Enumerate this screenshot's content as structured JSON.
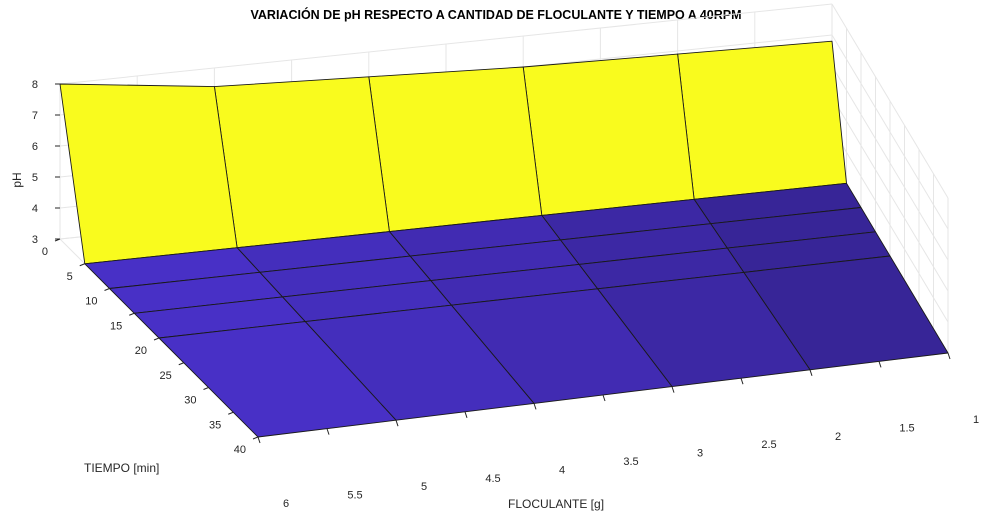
{
  "chart_data": {
    "type": "surface",
    "title": "VARIACIÓN DE pH RESPECTO A CANTIDAD DE FLOCULANTE Y TIEMPO A 40RPM",
    "xlabel": "FLOCULANTE [g]",
    "ylabel": "TIEMPO [min]",
    "zlabel": "pH",
    "x": [
      1,
      2,
      3,
      4,
      5,
      6
    ],
    "y": [
      0,
      5,
      10,
      15,
      20,
      40
    ],
    "z": [
      [
        6.8,
        6.9,
        7.0,
        7.2,
        7.4,
        8.0
      ],
      [
        3.0,
        3.0,
        3.0,
        3.0,
        3.0,
        3.0
      ],
      [
        3.0,
        3.0,
        3.0,
        3.0,
        3.0,
        3.0
      ],
      [
        3.0,
        3.0,
        3.0,
        3.0,
        3.0,
        3.0
      ],
      [
        3.0,
        3.0,
        3.0,
        3.0,
        3.0,
        3.0
      ],
      [
        3.0,
        3.0,
        3.0,
        3.0,
        3.0,
        3.0
      ]
    ],
    "xlim": [
      1,
      6
    ],
    "ylim": [
      0,
      40
    ],
    "zlim": [
      3,
      8
    ],
    "xticks": [
      "1",
      "1.5",
      "2",
      "2.5",
      "3",
      "3.5",
      "4",
      "4.5",
      "5",
      "5.5",
      "6"
    ],
    "yticks": [
      "0",
      "5",
      "10",
      "15",
      "20",
      "25",
      "30",
      "35",
      "40"
    ],
    "zticks": [
      "3",
      "4",
      "5",
      "6",
      "7",
      "8"
    ],
    "grid": true,
    "colormap": "parula",
    "colors": {
      "high": "#f9fb1e",
      "low": "#3d3bd8",
      "edge": "#1a1a1a",
      "grid": "#e6e6e6"
    }
  }
}
